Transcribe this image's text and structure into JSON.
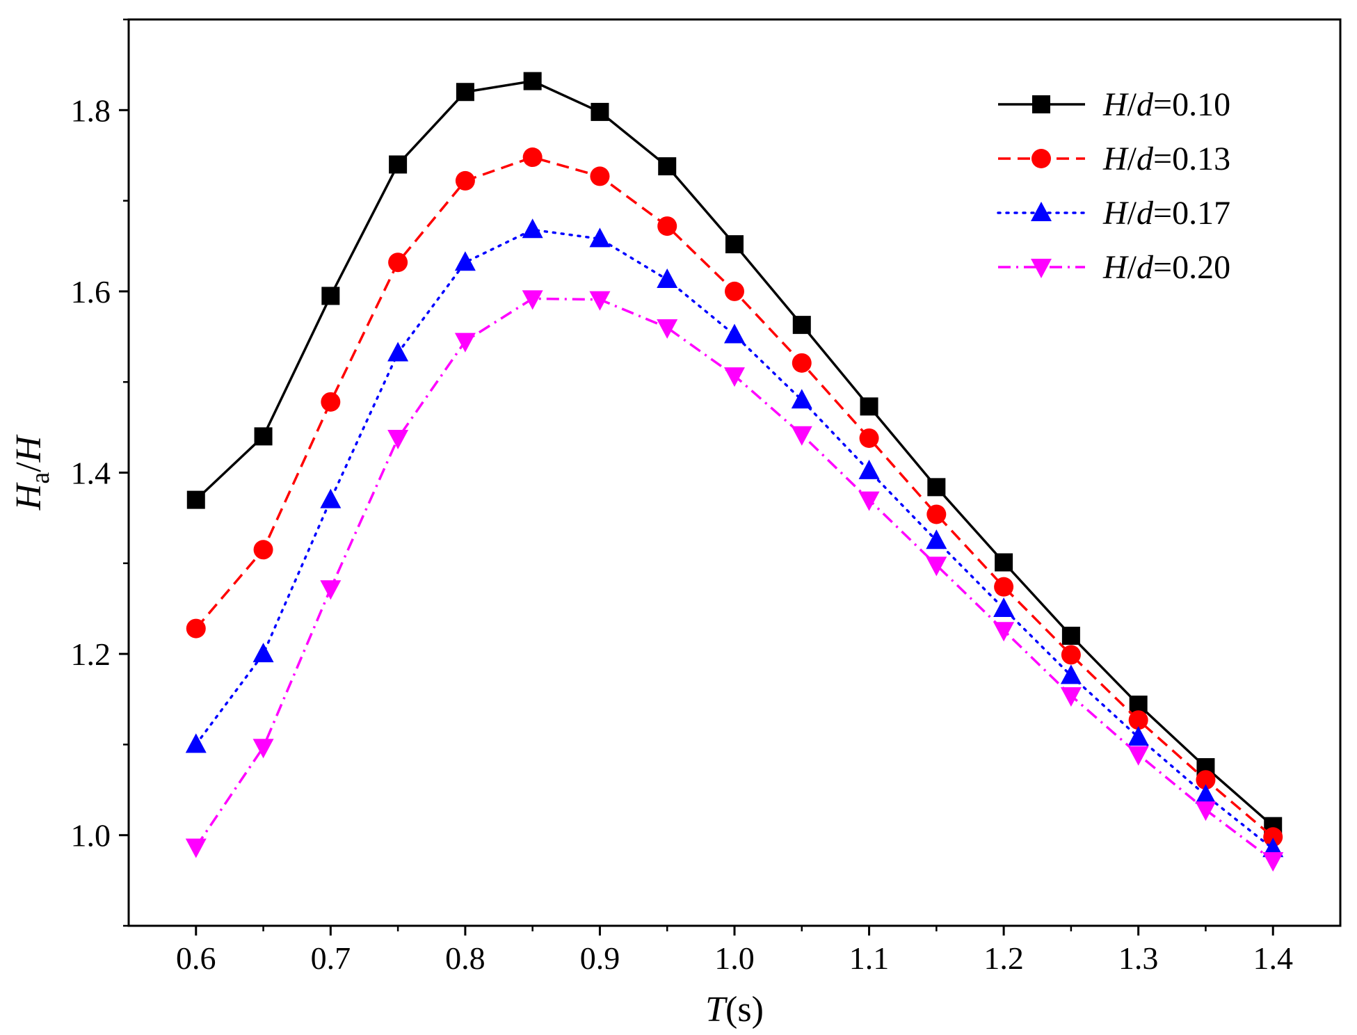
{
  "chart_data": {
    "type": "line",
    "title": "",
    "xlabel": {
      "var": "T",
      "unit": "(s)"
    },
    "ylabel": {
      "var": "H",
      "sub": "a",
      "sep": "/",
      "den": "H"
    },
    "xlim": [
      0.55,
      1.45
    ],
    "ylim": [
      0.9,
      1.9
    ],
    "xticks": [
      0.6,
      0.7,
      0.8,
      0.9,
      1.0,
      1.1,
      1.2,
      1.3,
      1.4
    ],
    "xtick_labels": [
      "0.6",
      "0.7",
      "0.8",
      "0.9",
      "1.0",
      "1.1",
      "1.2",
      "1.3",
      "1.4"
    ],
    "yticks": [
      1.0,
      1.2,
      1.4,
      1.6,
      1.8
    ],
    "ytick_labels": [
      "1.0",
      "1.2",
      "1.4",
      "1.6",
      "1.8"
    ],
    "x": [
      0.6,
      0.65,
      0.7,
      0.75,
      0.8,
      0.85,
      0.9,
      0.95,
      1.0,
      1.05,
      1.1,
      1.15,
      1.2,
      1.25,
      1.3,
      1.35,
      1.4
    ],
    "legend_position": "top-right",
    "series": [
      {
        "name": "H/d=0.10",
        "legend": {
          "var1": "H",
          "sep": "/",
          "var2": "d",
          "eq": "=0.10"
        },
        "color": "#000000",
        "dash": "solid",
        "marker": "square",
        "values": [
          1.37,
          1.44,
          1.595,
          1.74,
          1.82,
          1.832,
          1.798,
          1.738,
          1.652,
          1.563,
          1.473,
          1.384,
          1.301,
          1.22,
          1.144,
          1.075,
          1.01
        ]
      },
      {
        "name": "H/d=0.13",
        "legend": {
          "var1": "H",
          "sep": "/",
          "var2": "d",
          "eq": "=0.13"
        },
        "color": "#ff0000",
        "dash": "dashed",
        "marker": "circle",
        "values": [
          1.228,
          1.315,
          1.478,
          1.632,
          1.722,
          1.748,
          1.727,
          1.672,
          1.6,
          1.521,
          1.438,
          1.354,
          1.274,
          1.199,
          1.127,
          1.061,
          0.998
        ]
      },
      {
        "name": "H/d=0.17",
        "legend": {
          "var1": "H",
          "sep": "/",
          "var2": "d",
          "eq": "=0.17"
        },
        "color": "#0000ff",
        "dash": "dotted",
        "marker": "triangle-up",
        "values": [
          1.1,
          1.2,
          1.37,
          1.532,
          1.632,
          1.668,
          1.658,
          1.613,
          1.552,
          1.48,
          1.402,
          1.325,
          1.25,
          1.176,
          1.108,
          1.044,
          0.985
        ]
      },
      {
        "name": "H/d=0.20",
        "legend": {
          "var1": "H",
          "sep": "/",
          "var2": "d",
          "eq": "=0.20"
        },
        "color": "#ff00ff",
        "dash": "dashdot",
        "marker": "triangle-down",
        "values": [
          0.987,
          1.097,
          1.272,
          1.438,
          1.545,
          1.592,
          1.591,
          1.56,
          1.507,
          1.442,
          1.37,
          1.298,
          1.226,
          1.154,
          1.089,
          1.028,
          0.972
        ]
      }
    ]
  }
}
